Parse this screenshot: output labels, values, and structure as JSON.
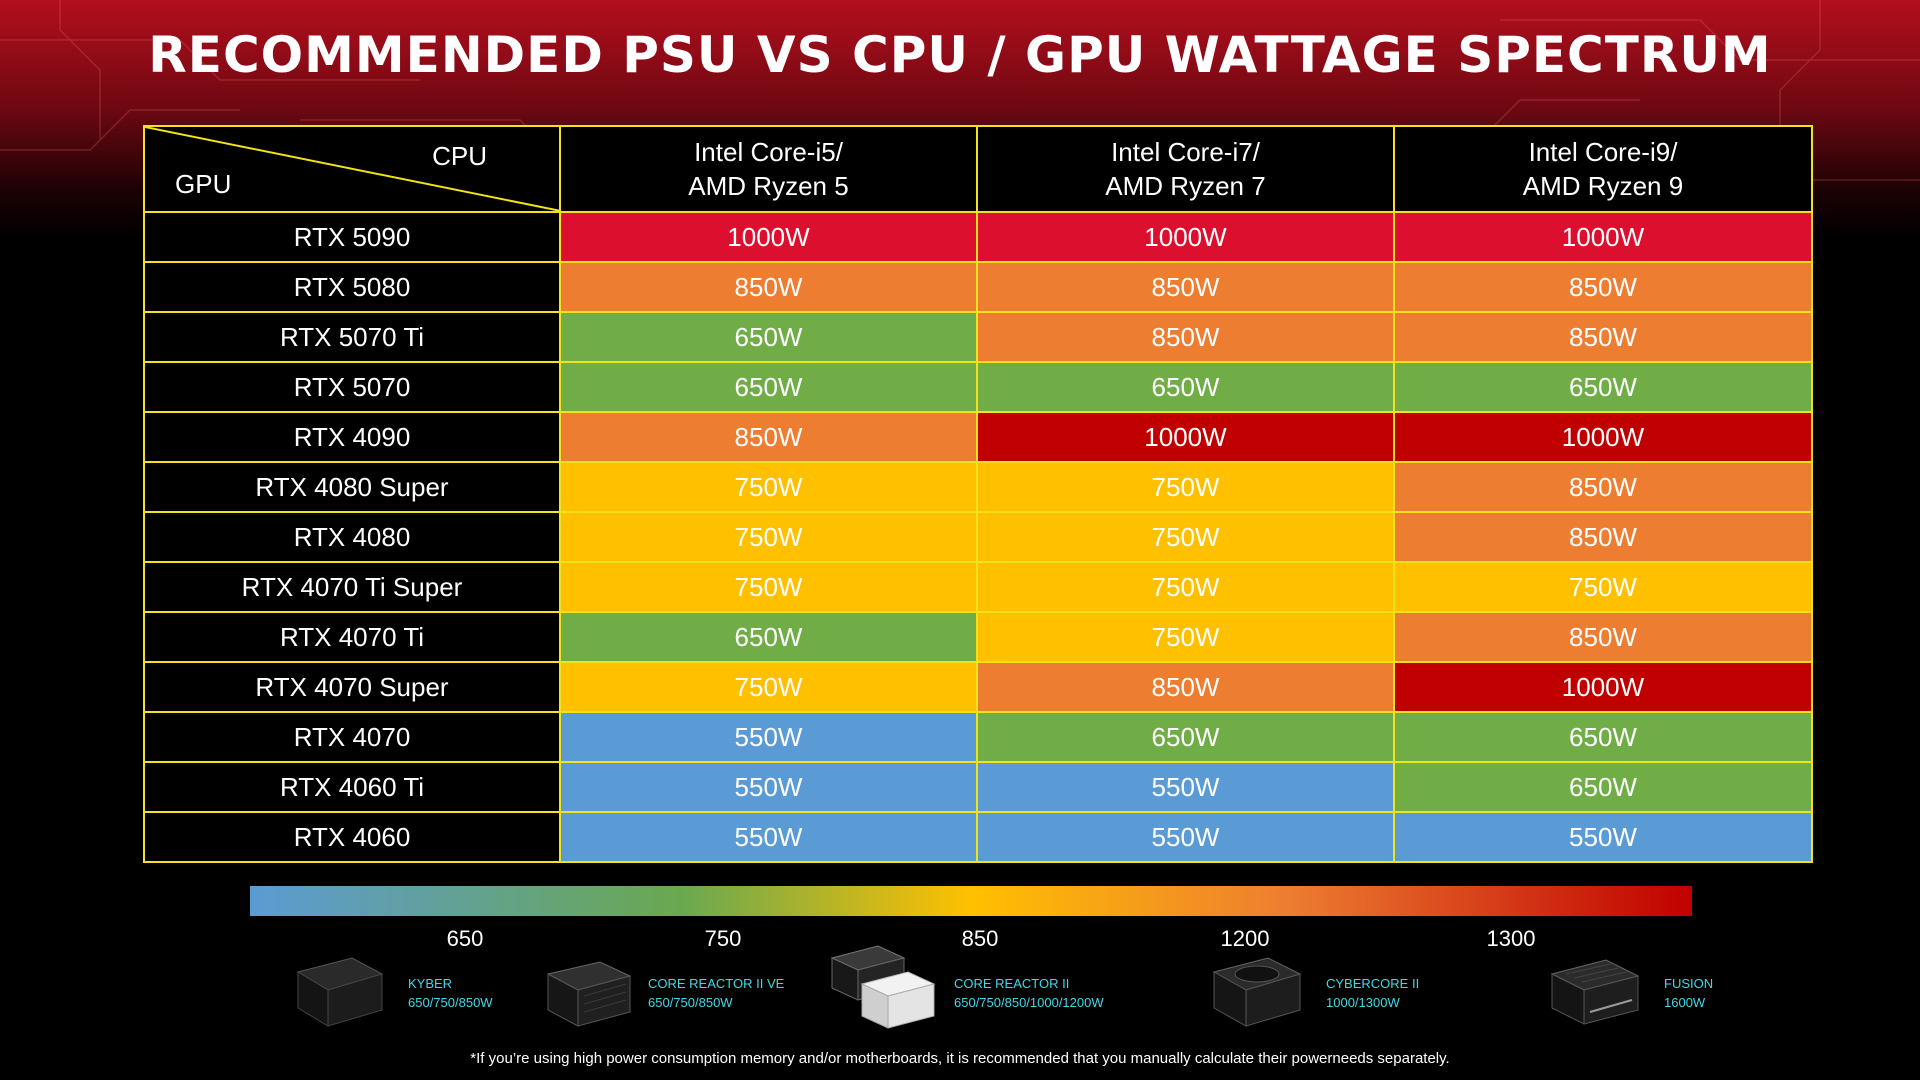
{
  "chart_data": {
    "type": "table",
    "title": "RECOMMENDED PSU VS CPU / GPU WATTAGE SPECTRUM",
    "corner": {
      "cpu_label": "CPU",
      "gpu_label": "GPU"
    },
    "columns": [
      {
        "line1": "Intel Core-i5/",
        "line2": "AMD Ryzen 5"
      },
      {
        "line1": "Intel Core-i7/",
        "line2": "AMD Ryzen 7"
      },
      {
        "line1": "Intel Core-i9/",
        "line2": "AMD Ryzen 9"
      }
    ],
    "rows": [
      {
        "gpu": "RTX 5090",
        "values": [
          "1000W",
          "1000W",
          "1000W"
        ]
      },
      {
        "gpu": "RTX 5080",
        "values": [
          "850W",
          "850W",
          "850W"
        ]
      },
      {
        "gpu": "RTX 5070 Ti",
        "values": [
          "650W",
          "850W",
          "850W"
        ]
      },
      {
        "gpu": "RTX 5070",
        "values": [
          "650W",
          "650W",
          "650W"
        ]
      },
      {
        "gpu": "RTX 4090",
        "values": [
          "850W",
          "1000W",
          "1000W"
        ]
      },
      {
        "gpu": "RTX 4080 Super",
        "values": [
          "750W",
          "750W",
          "850W"
        ]
      },
      {
        "gpu": "RTX 4080",
        "values": [
          "750W",
          "750W",
          "850W"
        ]
      },
      {
        "gpu": "RTX 4070 Ti Super",
        "values": [
          "750W",
          "750W",
          "750W"
        ]
      },
      {
        "gpu": "RTX 4070 Ti",
        "values": [
          "650W",
          "750W",
          "850W"
        ]
      },
      {
        "gpu": "RTX 4070 Super",
        "values": [
          "750W",
          "850W",
          "1000W"
        ]
      },
      {
        "gpu": "RTX 4070",
        "values": [
          "550W",
          "650W",
          "650W"
        ]
      },
      {
        "gpu": "RTX 4060 Ti",
        "values": [
          "550W",
          "550W",
          "650W"
        ]
      },
      {
        "gpu": "RTX 4060",
        "values": [
          "550W",
          "550W",
          "550W"
        ]
      }
    ],
    "cell_colors": {
      "550W": "#5b9bd5",
      "650W": "#70ad47",
      "750W": "#ffc000",
      "850W": "#ed7d31",
      "1000W": "#c00000"
    },
    "row_overrides": {
      "RTX 5090": "#dc0f2f"
    },
    "legend_ticks": [
      "650",
      "750",
      "850",
      "1200",
      "1300"
    ],
    "grid_color": "#f2e21c"
  },
  "products": [
    {
      "name": "KYBER",
      "watts": "650/750/850W"
    },
    {
      "name": "CORE REACTOR II VE",
      "watts": "650/750/850W"
    },
    {
      "name": "CORE REACTOR II",
      "watts": "650/750/850/1000/1200W"
    },
    {
      "name": "CYBERCORE II",
      "watts": "1000/1300W"
    },
    {
      "name": "FUSION",
      "watts": "1600W"
    }
  ],
  "footnote": "*If you’re using high power consumption memory and/or motherboards, it is recommended that you manually calculate their powerneeds separately."
}
